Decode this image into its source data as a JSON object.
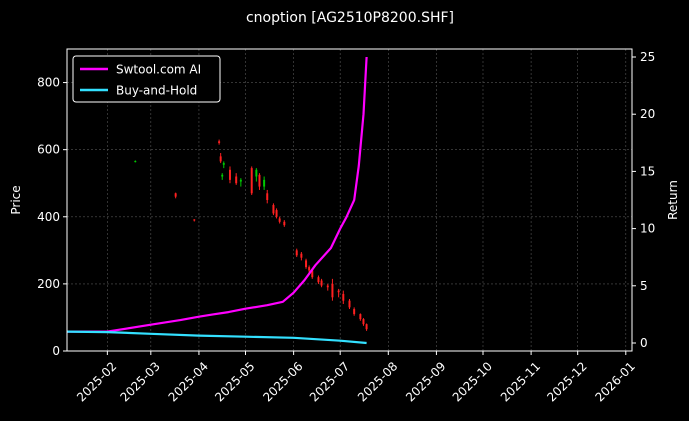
{
  "chart_data": {
    "type": "candlestick+line",
    "title": "cnoption [AG2510P8200.SHF]",
    "ylabel_left": "Price",
    "ylabel_right": "Return",
    "ylim_left": [
      0,
      900
    ],
    "ylim_right": [
      -0.7,
      25.7
    ],
    "xlim": [
      "2025-01-06",
      "2026-01-05"
    ],
    "x_ticks": [
      "2025-02",
      "2025-03",
      "2025-04",
      "2025-05",
      "2025-06",
      "2025-07",
      "2025-08",
      "2025-09",
      "2025-10",
      "2025-11",
      "2025-12",
      "2026-01"
    ],
    "y_ticks_left": [
      0,
      200,
      400,
      600,
      800
    ],
    "y_ticks_right": [
      0,
      5,
      10,
      15,
      20,
      25
    ],
    "grid": true,
    "legend_position": "top-left",
    "colors": {
      "up": "#00cc00",
      "down": "#ff2020",
      "strategy": "#ff00ff",
      "buyhold": "#33e0ff",
      "background": "#000000"
    },
    "series": [
      {
        "name": "Swtool.com AI",
        "axis": "right",
        "x": [
          "2025-01-06",
          "2025-02-01",
          "2025-03-01",
          "2025-03-20",
          "2025-04-01",
          "2025-04-10",
          "2025-04-20",
          "2025-05-01",
          "2025-05-15",
          "2025-05-25",
          "2025-06-01",
          "2025-06-08",
          "2025-06-15",
          "2025-06-25",
          "2025-07-01",
          "2025-07-05",
          "2025-07-10",
          "2025-07-13",
          "2025-07-16",
          "2025-07-18"
        ],
        "y": [
          1.0,
          1.0,
          1.6,
          2.0,
          2.3,
          2.5,
          2.7,
          3.0,
          3.3,
          3.6,
          4.4,
          5.5,
          6.8,
          8.3,
          10.0,
          11.0,
          12.5,
          15.5,
          20.0,
          25.0
        ]
      },
      {
        "name": "Buy-and-Hold",
        "axis": "right",
        "x": [
          "2025-01-06",
          "2025-02-01",
          "2025-03-01",
          "2025-04-01",
          "2025-05-01",
          "2025-06-01",
          "2025-07-01",
          "2025-07-18"
        ],
        "y": [
          1.0,
          0.95,
          0.8,
          0.65,
          0.55,
          0.45,
          0.2,
          0.0
        ]
      }
    ],
    "candles": [
      [
        "2025-02-19",
        565,
        568,
        562,
        566
      ],
      [
        "2025-03-17",
        470,
        472,
        455,
        460
      ],
      [
        "2025-03-29",
        392,
        393,
        386,
        390
      ],
      [
        "2025-04-14",
        625,
        630,
        615,
        620
      ],
      [
        "2025-04-15",
        580,
        590,
        560,
        565
      ],
      [
        "2025-04-16",
        520,
        530,
        510,
        525
      ],
      [
        "2025-04-17",
        555,
        565,
        545,
        560
      ],
      [
        "2025-04-21",
        540,
        550,
        500,
        510
      ],
      [
        "2025-04-25",
        520,
        530,
        495,
        500
      ],
      [
        "2025-04-28",
        505,
        515,
        490,
        510
      ],
      [
        "2025-05-05",
        545,
        550,
        465,
        470
      ],
      [
        "2025-05-08",
        520,
        545,
        505,
        540
      ],
      [
        "2025-05-10",
        525,
        530,
        480,
        490
      ],
      [
        "2025-05-13",
        490,
        520,
        480,
        510
      ],
      [
        "2025-05-15",
        470,
        480,
        440,
        450
      ],
      [
        "2025-05-19",
        435,
        440,
        405,
        410
      ],
      [
        "2025-05-21",
        420,
        425,
        395,
        400
      ],
      [
        "2025-05-23",
        395,
        400,
        380,
        385
      ],
      [
        "2025-05-26",
        385,
        390,
        370,
        375
      ],
      [
        "2025-06-03",
        300,
        305,
        280,
        285
      ],
      [
        "2025-06-06",
        290,
        295,
        270,
        278
      ],
      [
        "2025-06-09",
        270,
        275,
        245,
        250
      ],
      [
        "2025-06-11",
        250,
        255,
        230,
        240
      ],
      [
        "2025-06-13",
        240,
        245,
        215,
        220
      ],
      [
        "2025-06-17",
        220,
        225,
        200,
        205
      ],
      [
        "2025-06-19",
        210,
        215,
        190,
        195
      ],
      [
        "2025-06-23",
        195,
        200,
        180,
        190
      ],
      [
        "2025-06-26",
        200,
        215,
        150,
        160
      ],
      [
        "2025-06-30",
        180,
        185,
        160,
        175
      ],
      [
        "2025-07-03",
        170,
        180,
        140,
        150
      ],
      [
        "2025-07-07",
        150,
        155,
        125,
        130
      ],
      [
        "2025-07-10",
        125,
        130,
        105,
        110
      ],
      [
        "2025-07-14",
        110,
        112,
        90,
        95
      ],
      [
        "2025-07-16",
        95,
        98,
        75,
        80
      ],
      [
        "2025-07-18",
        80,
        82,
        60,
        65
      ]
    ]
  }
}
